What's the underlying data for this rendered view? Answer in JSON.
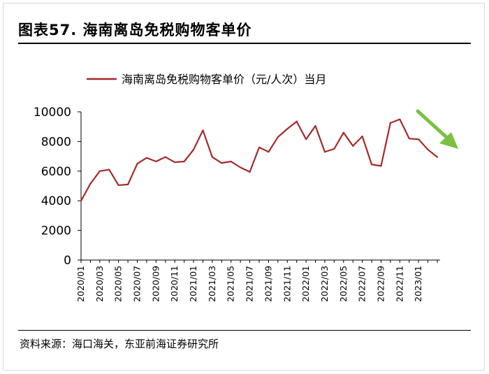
{
  "figure": {
    "title": "图表57. 海南离岛免税购物客单价",
    "source": "资料来源：海口海关，东亚前海证券研究所"
  },
  "chart_data": {
    "type": "line",
    "title": "",
    "xlabel": "",
    "ylabel": "",
    "ylim": [
      0,
      10000
    ],
    "yticks": [
      "0",
      "2000",
      "4000",
      "6000",
      "8000",
      "10000"
    ],
    "xtick_labels": [
      "2020/01",
      "2020/03",
      "2020/05",
      "2020/07",
      "2020/09",
      "2020/11",
      "2021/01",
      "2021/03",
      "2021/05",
      "2021/07",
      "2021/09",
      "2021/11",
      "2022/01",
      "2022/03",
      "2022/05",
      "2022/07",
      "2022/09",
      "2022/11",
      "2023/01"
    ],
    "x": [
      "2020/01",
      "2020/02",
      "2020/03",
      "2020/04",
      "2020/05",
      "2020/06",
      "2020/07",
      "2020/08",
      "2020/09",
      "2020/10",
      "2020/11",
      "2020/12",
      "2021/01",
      "2021/02",
      "2021/03",
      "2021/04",
      "2021/05",
      "2021/06",
      "2021/07",
      "2021/08",
      "2021/09",
      "2021/10",
      "2021/11",
      "2021/12",
      "2022/01",
      "2022/02",
      "2022/03",
      "2022/04",
      "2022/05",
      "2022/06",
      "2022/07",
      "2022/08",
      "2022/09",
      "2022/10",
      "2022/11",
      "2022/12",
      "2023/01",
      "2023/02",
      "2023/03"
    ],
    "series": [
      {
        "name": "海南离岛免税购物客单价（元/人次）当月",
        "color": "#a52a2a",
        "values": [
          4000,
          5150,
          6000,
          6100,
          5050,
          5100,
          6500,
          6900,
          6650,
          6950,
          6600,
          6650,
          7450,
          8750,
          6950,
          6550,
          6650,
          6250,
          5950,
          7600,
          7300,
          8300,
          8850,
          9350,
          8150,
          9050,
          7300,
          7500,
          8600,
          7700,
          8350,
          6450,
          6350,
          9250,
          9500,
          8200,
          8150,
          7450,
          6950
        ]
      }
    ],
    "legend": "top-center",
    "annotation": {
      "type": "arrow",
      "direction": "down-right",
      "color": "#7ac142"
    }
  }
}
